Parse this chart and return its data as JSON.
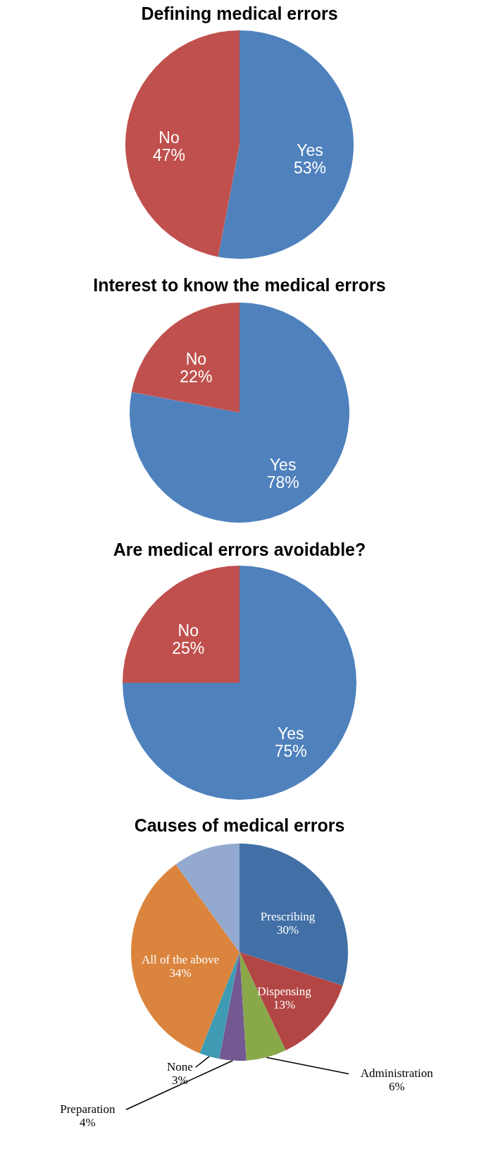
{
  "chart_data": [
    {
      "type": "pie",
      "title": "Defining medical errors",
      "categories": [
        "Yes",
        "No"
      ],
      "values": [
        53,
        47
      ],
      "value_labels": [
        "53%",
        "47%"
      ],
      "colors": [
        "#4f81bd",
        "#c0504d"
      ],
      "legend": false
    },
    {
      "type": "pie",
      "title": "Interest to know the medical errors",
      "categories": [
        "Yes",
        "No"
      ],
      "values": [
        78,
        22
      ],
      "value_labels": [
        "78%",
        "22%"
      ],
      "colors": [
        "#4f81bd",
        "#c0504d"
      ],
      "legend": false
    },
    {
      "type": "pie",
      "title": "Are medical errors avoidable?",
      "categories": [
        "Yes",
        "No"
      ],
      "values": [
        75,
        25
      ],
      "value_labels": [
        "75%",
        "25%"
      ],
      "colors": [
        "#4f81bd",
        "#c0504d"
      ],
      "legend": false
    },
    {
      "type": "pie",
      "title": "Causes of medical errors",
      "categories": [
        "Prescribing",
        "Dispensing",
        "Administration",
        "Preparation",
        "None",
        "All of the above",
        null
      ],
      "values": [
        30,
        13,
        6,
        4,
        3,
        34,
        10
      ],
      "value_labels": [
        "30%",
        "13%",
        "6%",
        "4%",
        "3%",
        "34%",
        null
      ],
      "colors": [
        "#4270a6",
        "#b24644",
        "#88a84a",
        "#735892",
        "#3f9bb3",
        "#db843d",
        "#93a9d0"
      ],
      "legend": false
    }
  ]
}
